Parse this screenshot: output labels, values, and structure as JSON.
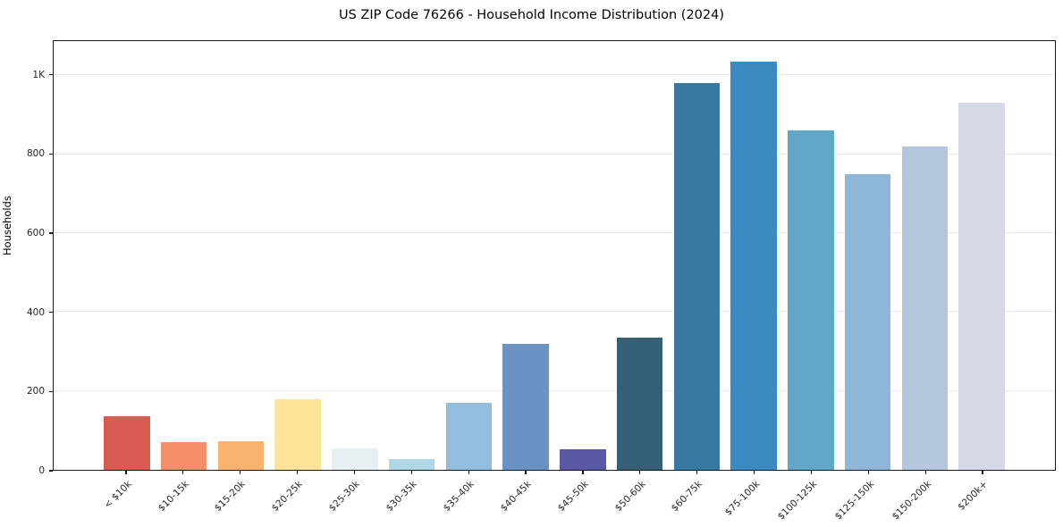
{
  "chart_data": {
    "type": "bar",
    "title": "US ZIP Code 76266 - Household Income Distribution (2024)",
    "xlabel": "",
    "ylabel": "Households",
    "ylim": [
      0,
      1087
    ],
    "grid": "horizontal-light-gray",
    "legend": "none",
    "yticks": [
      {
        "value": 0,
        "label": "0"
      },
      {
        "value": 200,
        "label": "200"
      },
      {
        "value": 400,
        "label": "400"
      },
      {
        "value": 600,
        "label": "600"
      },
      {
        "value": 800,
        "label": "800"
      },
      {
        "value": 1000,
        "label": "1K"
      }
    ],
    "categories": [
      "< $10k",
      "$10-15k",
      "$15-20k",
      "$20-25k",
      "$25-30k",
      "$30-35k",
      "$35-40k",
      "$40-45k",
      "$45-50k",
      "$50-60k",
      "$60-75k",
      "$75-100k",
      "$100-125k",
      "$125-150k",
      "$150-200k",
      "$200k+"
    ],
    "values": [
      135,
      70,
      72,
      180,
      55,
      28,
      170,
      320,
      52,
      335,
      980,
      1035,
      860,
      750,
      820,
      930
    ],
    "bar_colors": [
      "#d85c54",
      "#f48f6c",
      "#f9b36f",
      "#fde398",
      "#e6f0f2",
      "#b0d7e5",
      "#92bddc",
      "#6b92c4",
      "#5a58a5",
      "#365f75",
      "#3779a1",
      "#3a8ac1",
      "#61a7c8",
      "#8fb6d7",
      "#b5c7de",
      "#d6dae8"
    ],
    "axis_color": "#1a1a1a",
    "gridline_color": "#ebebeb",
    "x_tick_rotation_deg": 45
  }
}
